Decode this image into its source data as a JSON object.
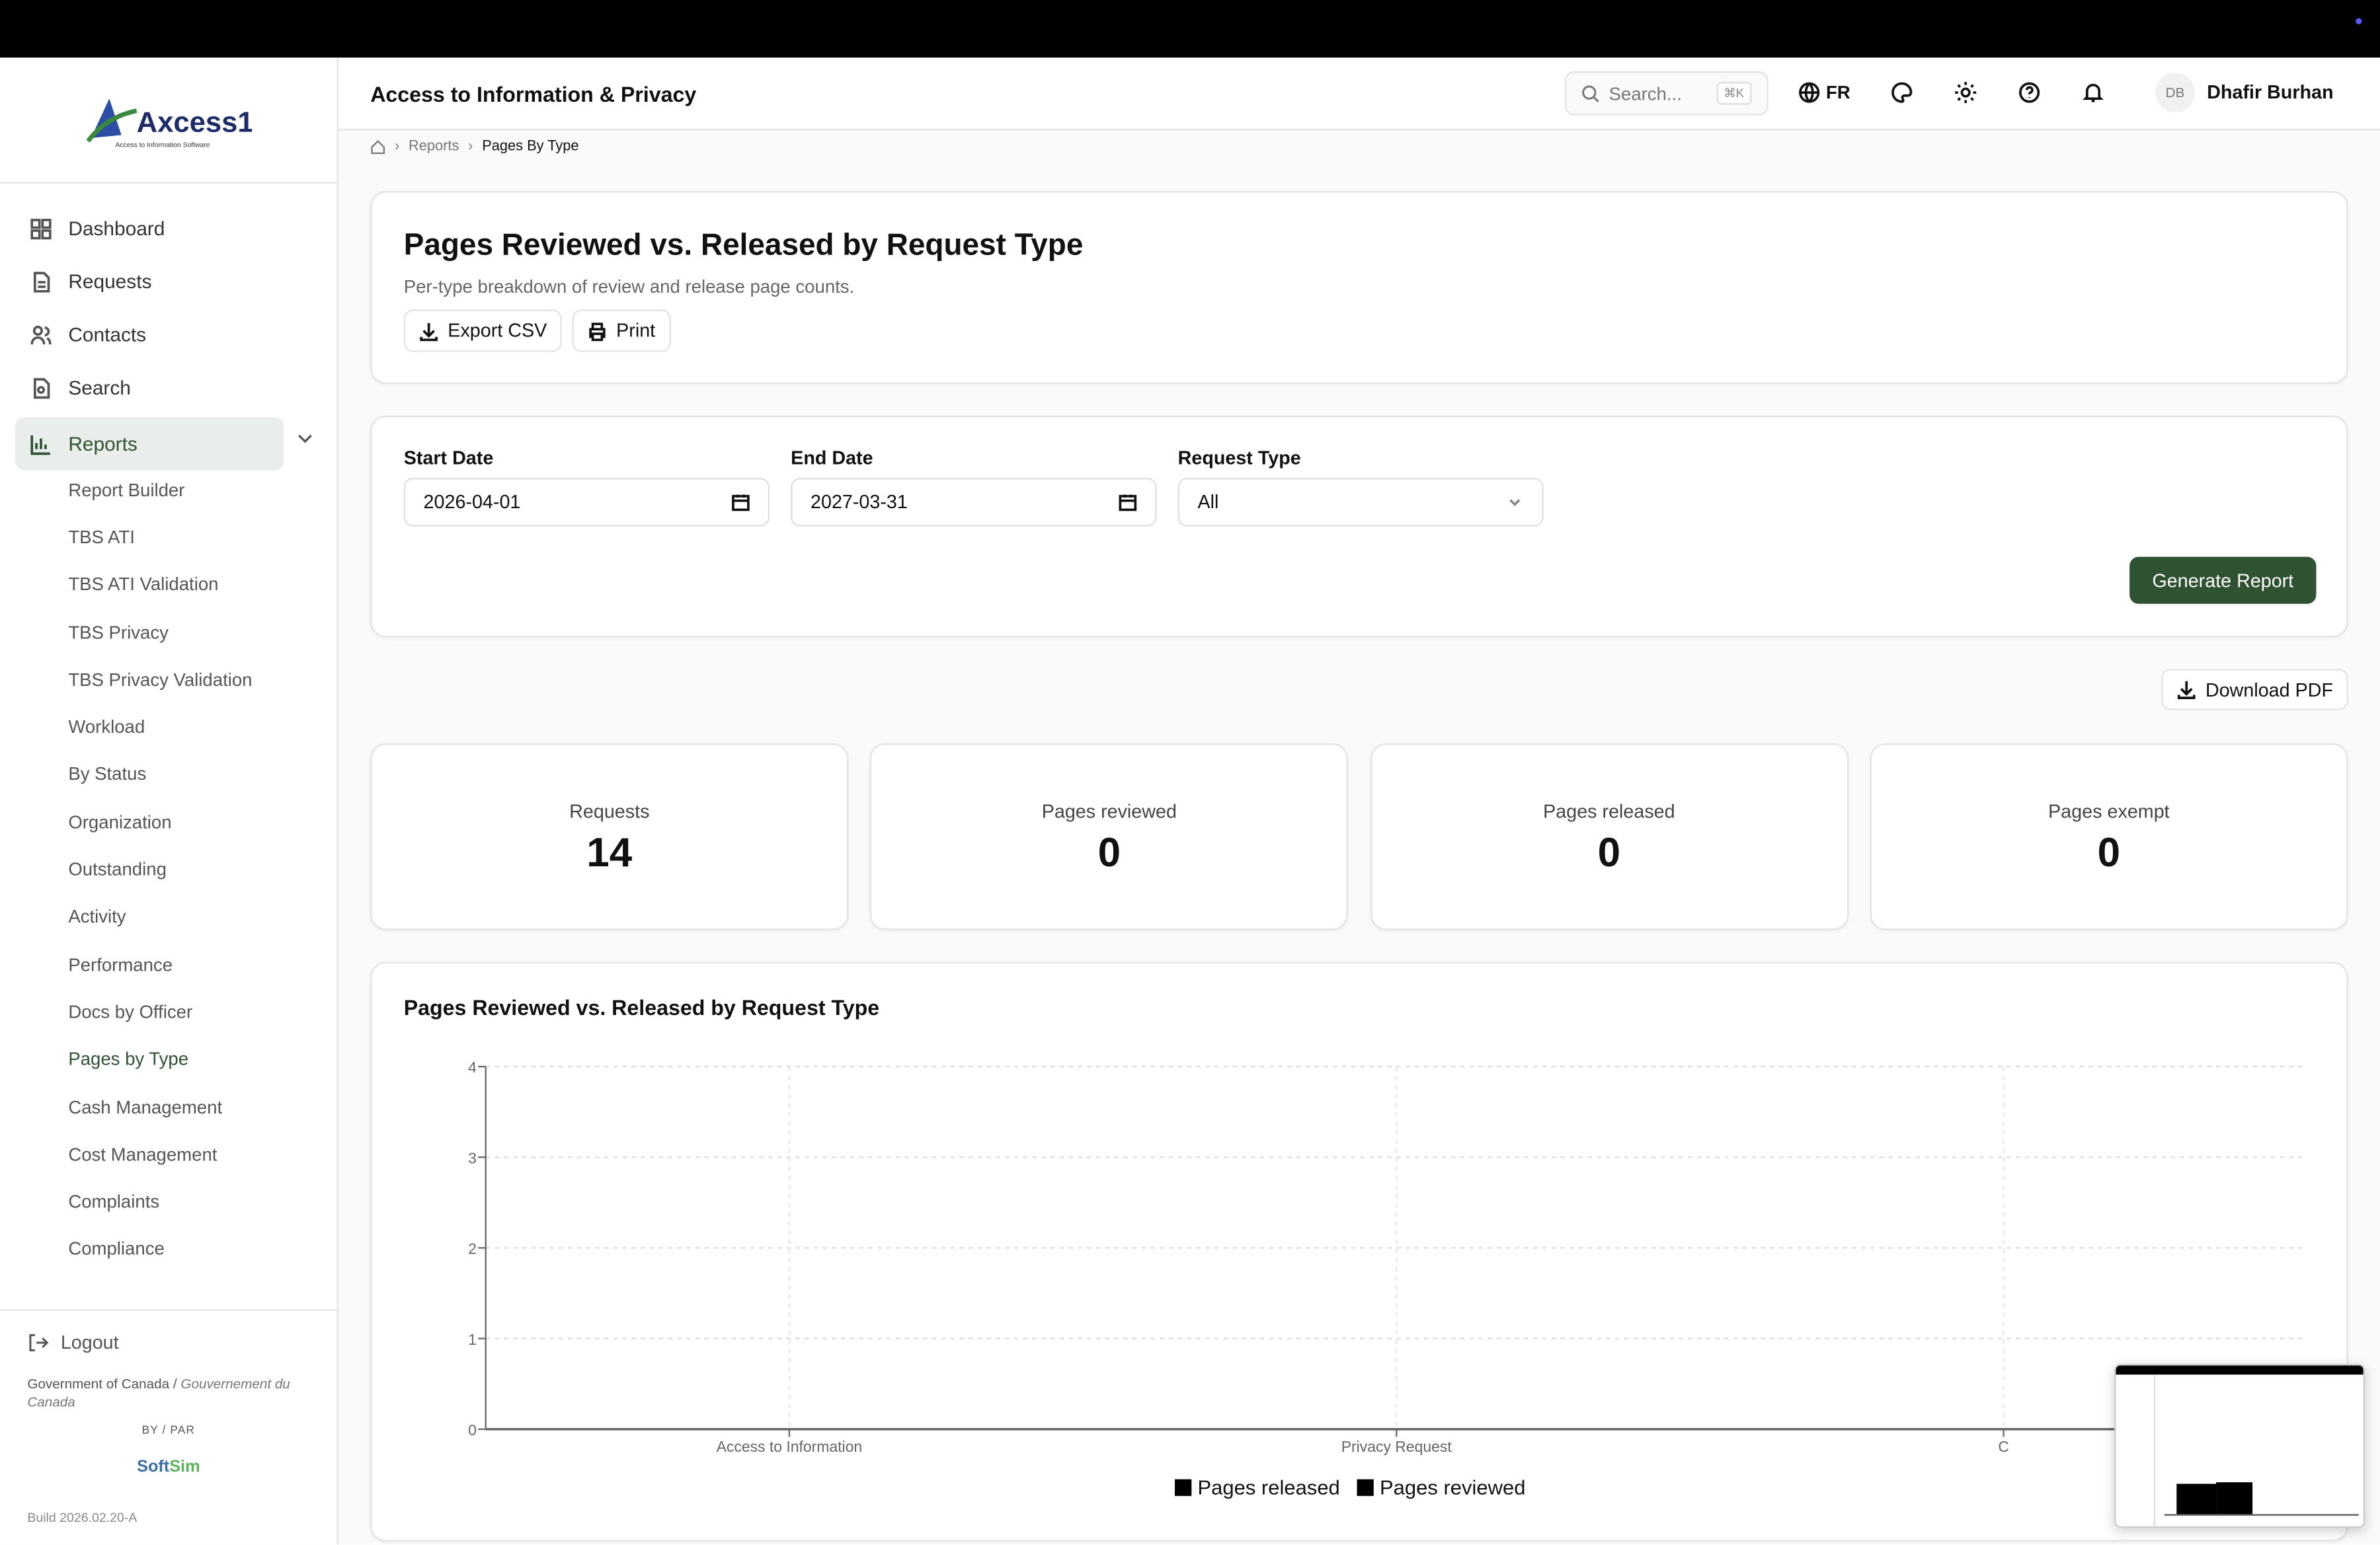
{
  "app": {
    "title": "Access to Information & Privacy",
    "logo_text": "Axcess1",
    "logo_tagline": "Access to Information Software"
  },
  "header": {
    "search_placeholder": "Search...",
    "search_shortcut": "⌘K",
    "language": "FR",
    "avatar_initials": "DB",
    "user_name": "Dhafir Burhan"
  },
  "sidebar": {
    "items": [
      {
        "label": "Dashboard",
        "icon": "grid-icon"
      },
      {
        "label": "Requests",
        "icon": "file-icon"
      },
      {
        "label": "Contacts",
        "icon": "users-icon"
      },
      {
        "label": "Search",
        "icon": "file-search-icon"
      },
      {
        "label": "Reports",
        "icon": "bar-chart-icon",
        "active": true
      }
    ],
    "report_items": [
      "Report Builder",
      "TBS ATI",
      "TBS ATI Validation",
      "TBS Privacy",
      "TBS Privacy Validation",
      "Workload",
      "By Status",
      "Organization",
      "Outstanding",
      "Activity",
      "Performance",
      "Docs by Officer",
      "Pages by Type",
      "Cash Management",
      "Cost Management",
      "Complaints",
      "Compliance"
    ],
    "active_report": "Pages by Type",
    "logout": "Logout",
    "gov_en": "Government of Canada",
    "gov_sep": " / ",
    "gov_fr": "Gouvernement du Canada",
    "by_par": "BY / PAR",
    "softsim_a": "Soft",
    "softsim_b": "Sim",
    "build": "Build 2026.02.20-A"
  },
  "breadcrumb": {
    "parent": "Reports",
    "current": "Pages By Type"
  },
  "page": {
    "title": "Pages Reviewed vs. Released by Request Type",
    "subtitle": "Per-type breakdown of review and release page counts.",
    "export_csv": "Export CSV",
    "print": "Print"
  },
  "filters": {
    "start_label": "Start Date",
    "start_value": "2026-04-01",
    "end_label": "End Date",
    "end_value": "2027-03-31",
    "type_label": "Request Type",
    "type_value": "All",
    "generate": "Generate Report"
  },
  "download_pdf": "Download PDF",
  "stats": [
    {
      "label": "Requests",
      "value": "14"
    },
    {
      "label": "Pages reviewed",
      "value": "0"
    },
    {
      "label": "Pages released",
      "value": "0"
    },
    {
      "label": "Pages exempt",
      "value": "0"
    }
  ],
  "colors": {
    "accent": "#2f5233",
    "series": "#000000"
  },
  "chart_data": {
    "type": "bar",
    "title": "Pages Reviewed vs. Released by Request Type",
    "categories": [
      "Access to Information",
      "Privacy Request",
      "C"
    ],
    "series": [
      {
        "name": "Pages released",
        "values": [
          0,
          0,
          0
        ]
      },
      {
        "name": "Pages reviewed",
        "values": [
          0,
          0,
          0
        ]
      }
    ],
    "yticks": [
      "0",
      "1",
      "2",
      "3",
      "4"
    ],
    "ylim": [
      0,
      4
    ],
    "grid": true,
    "legend": "bottom"
  }
}
